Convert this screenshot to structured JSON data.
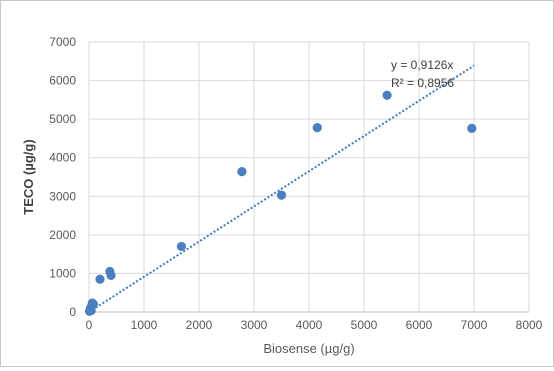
{
  "chart_data": {
    "type": "scatter",
    "xlabel": "Biosense (µg/g)",
    "ylabel": "TECO (µg/g)",
    "xlim": [
      0,
      8000
    ],
    "ylim": [
      0,
      7000
    ],
    "x_ticks": [
      "0",
      "1000",
      "2000",
      "3000",
      "4000",
      "5000",
      "6000",
      "7000",
      "8000"
    ],
    "y_ticks": [
      "0",
      "1000",
      "2000",
      "3000",
      "4000",
      "5000",
      "6000",
      "7000"
    ],
    "grid": true,
    "series": [
      {
        "points": [
          [
            10,
            20
          ],
          [
            20,
            60
          ],
          [
            30,
            110
          ],
          [
            40,
            40
          ],
          [
            50,
            160
          ],
          [
            60,
            230
          ],
          [
            80,
            200
          ],
          [
            200,
            850
          ],
          [
            380,
            1050
          ],
          [
            400,
            950
          ],
          [
            1680,
            1700
          ],
          [
            2780,
            3640
          ],
          [
            3500,
            3030
          ],
          [
            4150,
            4780
          ],
          [
            5420,
            5620
          ],
          [
            6960,
            4760
          ]
        ],
        "color": "#4a7fc1"
      }
    ],
    "trendline": {
      "type": "linear",
      "slope": 0.9126,
      "x_range": [
        0,
        7000
      ],
      "style": "dotted",
      "color": "#3e7cc4",
      "equation_label": "y = 0,9126x",
      "r2_label": "R² = 0,8956"
    }
  }
}
